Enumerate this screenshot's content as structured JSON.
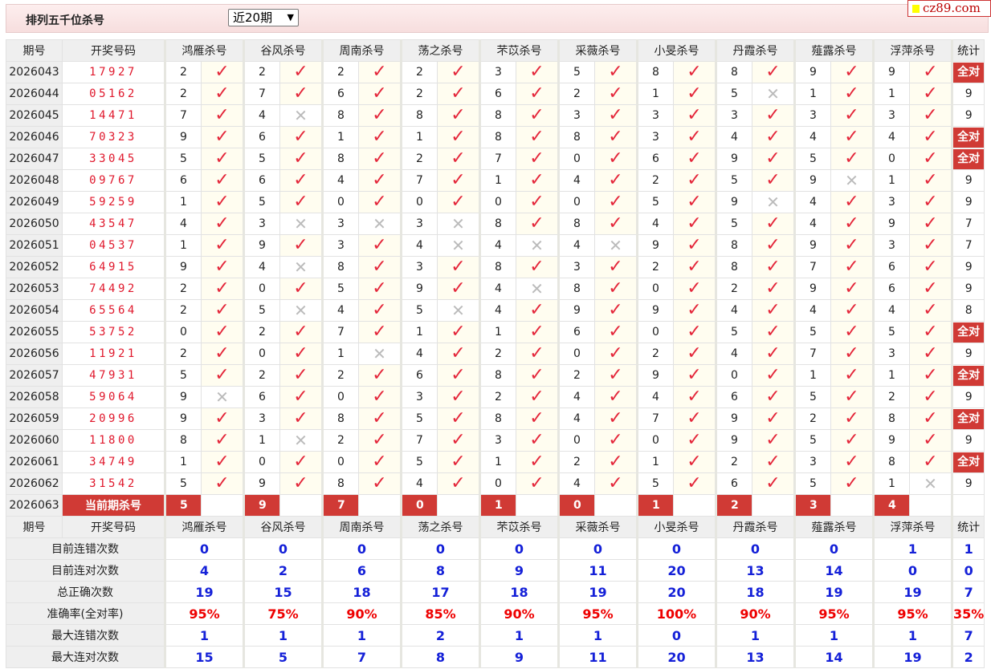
{
  "header": {
    "title": "排列五千位杀号",
    "period_select": "近20期",
    "logo": "cz89.com"
  },
  "columns": {
    "issue": "期号",
    "number": "开奖号码",
    "predictors": [
      "鸿雁杀号",
      "谷风杀号",
      "周南杀号",
      "荡之杀号",
      "芣苡杀号",
      "采薇杀号",
      "小旻杀号",
      "丹霞杀号",
      "薤露杀号",
      "浮萍杀号"
    ],
    "stat": "统计"
  },
  "all_correct_label": "全对",
  "rows": [
    {
      "issue": "2026043",
      "number": "17927",
      "kills": [
        2,
        2,
        2,
        2,
        3,
        5,
        8,
        8,
        9,
        9
      ],
      "ok": [
        1,
        1,
        1,
        1,
        1,
        1,
        1,
        1,
        1,
        1
      ],
      "stat": "全对"
    },
    {
      "issue": "2026044",
      "number": "05162",
      "kills": [
        2,
        7,
        6,
        2,
        6,
        2,
        1,
        5,
        1,
        1
      ],
      "ok": [
        1,
        1,
        1,
        1,
        1,
        1,
        1,
        0,
        1,
        1
      ],
      "stat": "9"
    },
    {
      "issue": "2026045",
      "number": "14471",
      "kills": [
        7,
        4,
        8,
        8,
        8,
        3,
        3,
        3,
        3,
        3
      ],
      "ok": [
        1,
        0,
        1,
        1,
        1,
        1,
        1,
        1,
        1,
        1
      ],
      "stat": "9"
    },
    {
      "issue": "2026046",
      "number": "70323",
      "kills": [
        9,
        6,
        1,
        1,
        8,
        8,
        3,
        4,
        4,
        4
      ],
      "ok": [
        1,
        1,
        1,
        1,
        1,
        1,
        1,
        1,
        1,
        1
      ],
      "stat": "全对"
    },
    {
      "issue": "2026047",
      "number": "33045",
      "kills": [
        5,
        5,
        8,
        2,
        7,
        0,
        6,
        9,
        5,
        0
      ],
      "ok": [
        1,
        1,
        1,
        1,
        1,
        1,
        1,
        1,
        1,
        1
      ],
      "stat": "全对"
    },
    {
      "issue": "2026048",
      "number": "09767",
      "kills": [
        6,
        6,
        4,
        7,
        1,
        4,
        2,
        5,
        9,
        1
      ],
      "ok": [
        1,
        1,
        1,
        1,
        1,
        1,
        1,
        1,
        0,
        1
      ],
      "stat": "9"
    },
    {
      "issue": "2026049",
      "number": "59259",
      "kills": [
        1,
        5,
        0,
        0,
        0,
        0,
        5,
        9,
        4,
        3
      ],
      "ok": [
        1,
        1,
        1,
        1,
        1,
        1,
        1,
        0,
        1,
        1
      ],
      "stat": "9"
    },
    {
      "issue": "2026050",
      "number": "43547",
      "kills": [
        4,
        3,
        3,
        3,
        8,
        8,
        4,
        5,
        4,
        9
      ],
      "ok": [
        1,
        0,
        0,
        0,
        1,
        1,
        1,
        1,
        1,
        1
      ],
      "stat": "7"
    },
    {
      "issue": "2026051",
      "number": "04537",
      "kills": [
        1,
        9,
        3,
        4,
        4,
        4,
        9,
        8,
        9,
        3
      ],
      "ok": [
        1,
        1,
        1,
        0,
        0,
        0,
        1,
        1,
        1,
        1
      ],
      "stat": "7"
    },
    {
      "issue": "2026052",
      "number": "64915",
      "kills": [
        9,
        4,
        8,
        3,
        8,
        3,
        2,
        8,
        7,
        6
      ],
      "ok": [
        1,
        0,
        1,
        1,
        1,
        1,
        1,
        1,
        1,
        1
      ],
      "stat": "9"
    },
    {
      "issue": "2026053",
      "number": "74492",
      "kills": [
        2,
        0,
        5,
        9,
        4,
        8,
        0,
        2,
        9,
        6
      ],
      "ok": [
        1,
        1,
        1,
        1,
        0,
        1,
        1,
        1,
        1,
        1
      ],
      "stat": "9"
    },
    {
      "issue": "2026054",
      "number": "65564",
      "kills": [
        2,
        5,
        4,
        5,
        4,
        9,
        9,
        4,
        4,
        4
      ],
      "ok": [
        1,
        0,
        1,
        0,
        1,
        1,
        1,
        1,
        1,
        1
      ],
      "stat": "8"
    },
    {
      "issue": "2026055",
      "number": "53752",
      "kills": [
        0,
        2,
        7,
        1,
        1,
        6,
        0,
        5,
        5,
        5
      ],
      "ok": [
        1,
        1,
        1,
        1,
        1,
        1,
        1,
        1,
        1,
        1
      ],
      "stat": "全对"
    },
    {
      "issue": "2026056",
      "number": "11921",
      "kills": [
        2,
        0,
        1,
        4,
        2,
        0,
        2,
        4,
        7,
        3
      ],
      "ok": [
        1,
        1,
        0,
        1,
        1,
        1,
        1,
        1,
        1,
        1
      ],
      "stat": "9"
    },
    {
      "issue": "2026057",
      "number": "47931",
      "kills": [
        5,
        2,
        2,
        6,
        8,
        2,
        9,
        0,
        1,
        1
      ],
      "ok": [
        1,
        1,
        1,
        1,
        1,
        1,
        1,
        1,
        1,
        1
      ],
      "stat": "全对"
    },
    {
      "issue": "2026058",
      "number": "59064",
      "kills": [
        9,
        6,
        0,
        3,
        2,
        4,
        4,
        6,
        5,
        2
      ],
      "ok": [
        0,
        1,
        1,
        1,
        1,
        1,
        1,
        1,
        1,
        1
      ],
      "stat": "9"
    },
    {
      "issue": "2026059",
      "number": "20996",
      "kills": [
        9,
        3,
        8,
        5,
        8,
        4,
        7,
        9,
        2,
        8
      ],
      "ok": [
        1,
        1,
        1,
        1,
        1,
        1,
        1,
        1,
        1,
        1
      ],
      "stat": "全对"
    },
    {
      "issue": "2026060",
      "number": "11800",
      "kills": [
        8,
        1,
        2,
        7,
        3,
        0,
        0,
        9,
        5,
        9
      ],
      "ok": [
        1,
        0,
        1,
        1,
        1,
        1,
        1,
        1,
        1,
        1
      ],
      "stat": "9"
    },
    {
      "issue": "2026061",
      "number": "34749",
      "kills": [
        1,
        0,
        0,
        5,
        1,
        2,
        1,
        2,
        3,
        8
      ],
      "ok": [
        1,
        1,
        1,
        1,
        1,
        1,
        1,
        1,
        1,
        1
      ],
      "stat": "全对"
    },
    {
      "issue": "2026062",
      "number": "31542",
      "kills": [
        5,
        9,
        8,
        4,
        0,
        4,
        5,
        6,
        5,
        1
      ],
      "ok": [
        1,
        1,
        1,
        1,
        1,
        1,
        1,
        1,
        1,
        0
      ],
      "stat": "9"
    }
  ],
  "current": {
    "issue": "2026063",
    "label": "当前期杀号",
    "kills": [
      5,
      9,
      7,
      0,
      1,
      0,
      1,
      2,
      3,
      4
    ]
  },
  "summary": [
    {
      "label": "目前连错次数",
      "values": [
        "0",
        "0",
        "0",
        "0",
        "0",
        "0",
        "0",
        "0",
        "0",
        "1"
      ],
      "stat": "1"
    },
    {
      "label": "目前连对次数",
      "values": [
        "4",
        "2",
        "6",
        "8",
        "9",
        "11",
        "20",
        "13",
        "14",
        "0"
      ],
      "stat": "0"
    },
    {
      "label": "总正确次数",
      "values": [
        "19",
        "15",
        "18",
        "17",
        "18",
        "19",
        "20",
        "18",
        "19",
        "19"
      ],
      "stat": "7"
    },
    {
      "label": "准确率(全对率)",
      "values": [
        "95%",
        "75%",
        "90%",
        "85%",
        "90%",
        "95%",
        "100%",
        "90%",
        "95%",
        "95%"
      ],
      "stat": "35%",
      "pct": true
    },
    {
      "label": "最大连错次数",
      "values": [
        "1",
        "1",
        "1",
        "2",
        "1",
        "1",
        "0",
        "1",
        "1",
        "1"
      ],
      "stat": "7"
    },
    {
      "label": "最大连对次数",
      "values": [
        "15",
        "5",
        "7",
        "8",
        "9",
        "11",
        "20",
        "13",
        "14",
        "19"
      ],
      "stat": "2"
    }
  ],
  "colors": {
    "accent_red": "#d03a35",
    "check": "#e4263a",
    "cross": "#bbbbbb",
    "number": "#e0182c",
    "stat_blue": "#1420d8"
  }
}
